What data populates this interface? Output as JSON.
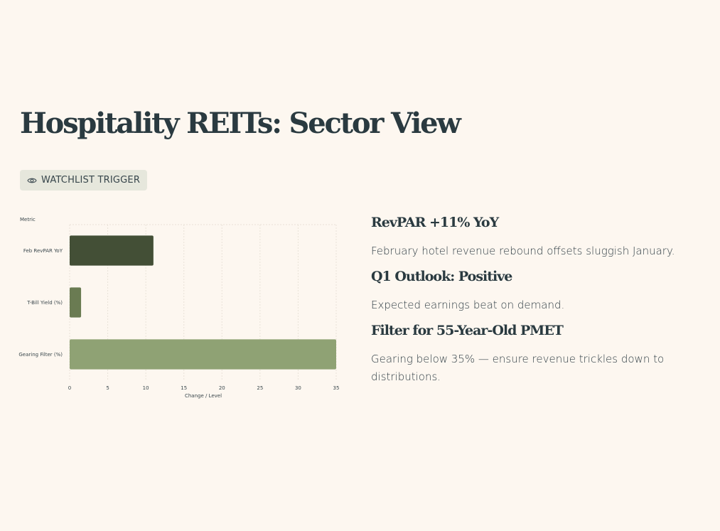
{
  "page": {
    "title": "Hospitality REITs: Sector View",
    "badge": {
      "label": "WATCHLIST TRIGGER",
      "icon": "eye-icon"
    }
  },
  "colors": {
    "background": "#fdf7f0",
    "heading": "#2a3a40",
    "badge_bg": "#e6e7dc",
    "bar_dark": "#434f36",
    "bar_mid": "#6a7b52",
    "bar_light": "#8fa274"
  },
  "chart_data": {
    "type": "bar",
    "orientation": "horizontal",
    "categories": [
      "Feb RevPAR YoY",
      "T-Bill Yield (%)",
      "Gearing Filter (%)"
    ],
    "values": [
      11,
      1.5,
      35
    ],
    "bar_colors": [
      "#434f36",
      "#6a7b52",
      "#8fa274"
    ],
    "xlim": [
      0,
      35
    ],
    "xticks": [
      "0",
      "5",
      "10",
      "15",
      "20",
      "25",
      "30",
      "35"
    ],
    "xlabel": "Change / Level",
    "ylabel": "Metric",
    "grid": true
  },
  "insights": [
    {
      "heading": "RevPAR +11% YoY",
      "text": "February hotel revenue rebound offsets sluggish January."
    },
    {
      "heading": "Q1 Outlook: Positive",
      "text": "Expected earnings beat on demand."
    },
    {
      "heading": "Filter for 55-Year-Old PMET",
      "text": "Gearing below 35% — ensure revenue trickles down to distributions."
    }
  ]
}
